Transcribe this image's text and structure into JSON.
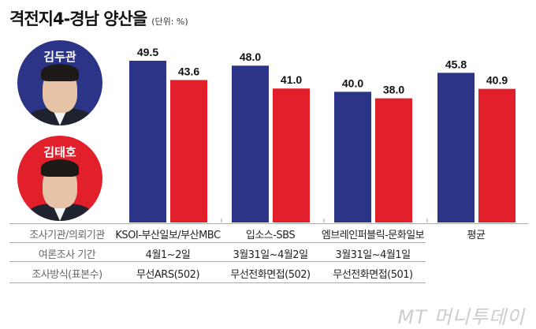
{
  "title": "격전지4-경남 양산을",
  "unit": "(단위: %)",
  "candidates": [
    {
      "name": "김두관",
      "color": "#2b3486"
    },
    {
      "name": "김태호",
      "color": "#e2202c"
    }
  ],
  "chart_data": {
    "type": "bar",
    "title": "격전지4-경남 양산을",
    "categories": [
      "KSOI-부산일보/부산MBC",
      "입소스-SBS",
      "엠브레인퍼블릭-문화일보",
      "평균"
    ],
    "series": [
      {
        "name": "김두관",
        "color": "#2b3486",
        "values": [
          49.5,
          48.0,
          40.0,
          45.8
        ]
      },
      {
        "name": "김태호",
        "color": "#e2202c",
        "values": [
          43.6,
          41.0,
          38.0,
          40.9
        ]
      }
    ],
    "value_labels": [
      [
        "49.5",
        "48.0",
        "40.0",
        "45.8"
      ],
      [
        "43.6",
        "41.0",
        "38.0",
        "40.9"
      ]
    ],
    "ylim": [
      0,
      50
    ],
    "grid": false
  },
  "table": {
    "rows": [
      {
        "label": "조사기관/의뢰기관",
        "cells": [
          "KSOI-부산일보/부산MBC",
          "입소스-SBS",
          "엠브레인퍼블릭-문화일보",
          "평균"
        ]
      },
      {
        "label": "여론조사 기간",
        "cells": [
          "4월1~2일",
          "3월31일~4월2일",
          "3월31일~4월1일"
        ]
      },
      {
        "label": "조사방식(표본수)",
        "cells": [
          "무선ARS(502)",
          "무선전화면접(502)",
          "무선전화면접(501)"
        ]
      }
    ]
  },
  "watermark": "MT 머니투데이"
}
